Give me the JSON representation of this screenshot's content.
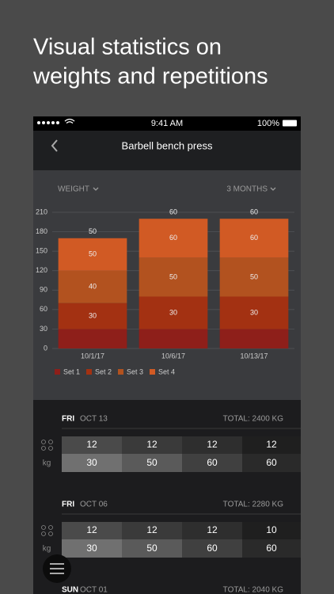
{
  "promo": {
    "title_lines": [
      "Visual statistics on",
      "weights and repetitions"
    ]
  },
  "status_bar": {
    "time": "9:41 AM",
    "battery": "100%"
  },
  "nav": {
    "title": "Barbell bench press"
  },
  "chart_controls": {
    "metric": "WEIGHT",
    "range": "3 MONTHS"
  },
  "chart_data": {
    "type": "bar",
    "stacked": true,
    "categories": [
      "10/1/17",
      "10/6/17",
      "10/13/17"
    ],
    "series": [
      {
        "name": "Set 1",
        "color": "#8e1f1a",
        "values": [
          30,
          30,
          30
        ]
      },
      {
        "name": "Set 2",
        "color": "#a33112",
        "values": [
          40,
          50,
          50
        ]
      },
      {
        "name": "Set 3",
        "color": "#b2521f",
        "values": [
          50,
          60,
          60
        ]
      },
      {
        "name": "Set 4",
        "color": "#d15a24",
        "values": [
          50,
          60,
          60
        ]
      }
    ],
    "ylim": [
      0,
      210
    ],
    "yticks": [
      0,
      30,
      60,
      90,
      120,
      150,
      180,
      210
    ],
    "grid": true,
    "legend": "bottom"
  },
  "unit": "kg",
  "workouts": [
    {
      "day": "FRI",
      "date": "OCT 13",
      "total": "TOTAL: 2400 KG",
      "reps": [
        12,
        12,
        12,
        12
      ],
      "weights": [
        30,
        50,
        60,
        60
      ]
    },
    {
      "day": "FRI",
      "date": "OCT 06",
      "total": "TOTAL: 2280 KG",
      "reps": [
        12,
        12,
        12,
        10
      ],
      "weights": [
        30,
        50,
        60,
        60
      ]
    },
    {
      "day": "SUN",
      "date": "OCT 01",
      "total": "TOTAL: 2040 KG"
    }
  ]
}
